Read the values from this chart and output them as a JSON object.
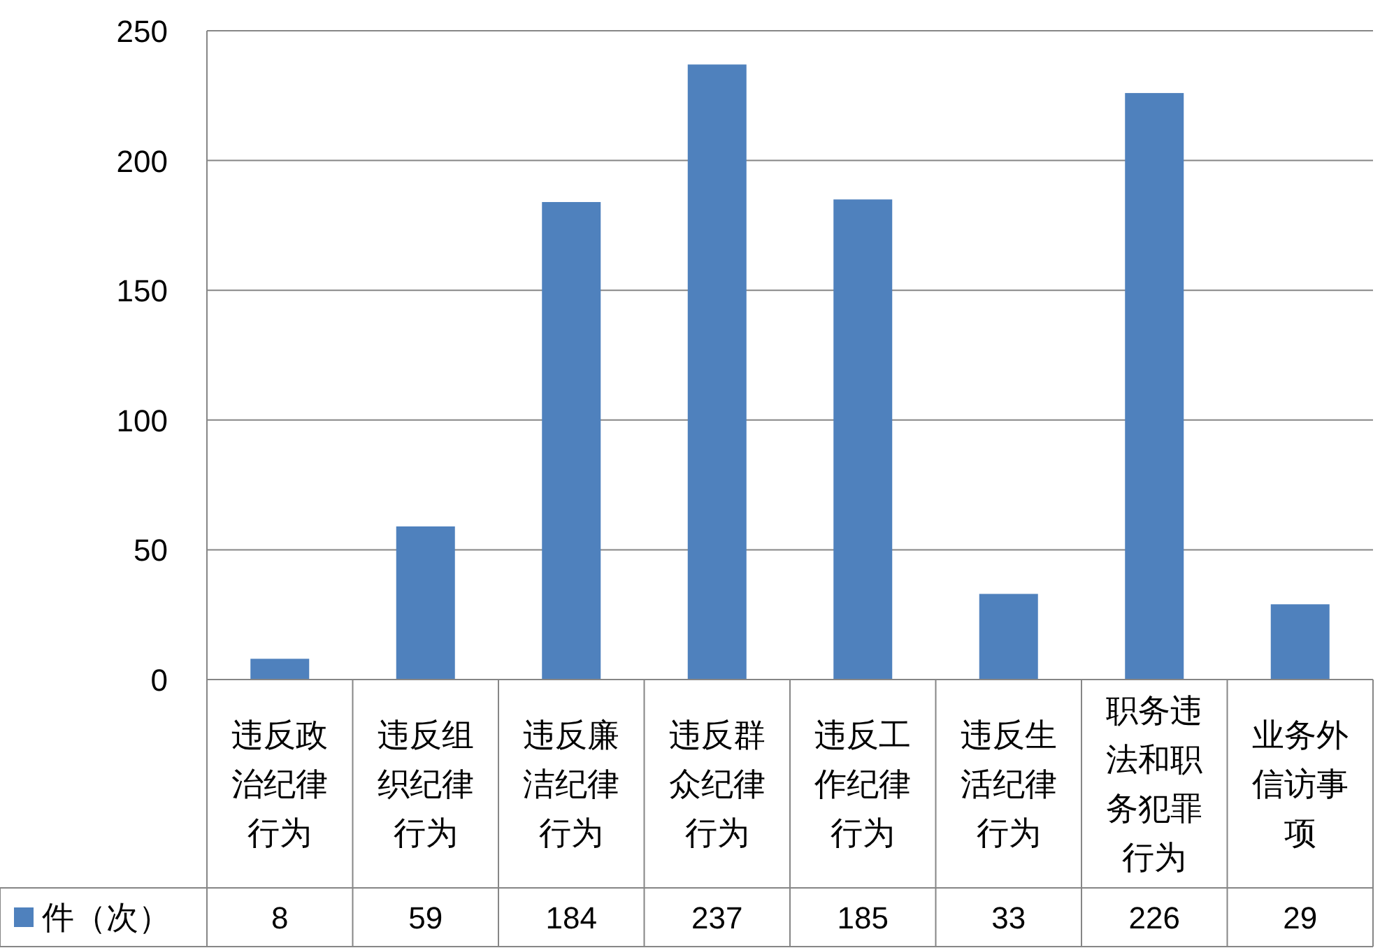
{
  "chart_data": {
    "type": "bar",
    "categories": [
      "违反政治纪律行为",
      "违反组织纪律行为",
      "违反廉洁纪律行为",
      "违反群众纪律行为",
      "违反工作纪律行为",
      "违反生活纪律行为",
      "职务违法和职务犯罪行为",
      "业务外信访事项"
    ],
    "series": [
      {
        "name": "件（次）",
        "color": "#4f81bd",
        "values": [
          8,
          59,
          184,
          237,
          185,
          33,
          226,
          29
        ]
      }
    ],
    "ylim": [
      0,
      250
    ],
    "yticks": [
      0,
      50,
      100,
      150,
      200,
      250
    ],
    "grid": "y",
    "legend": "bottom",
    "data_labels": true
  }
}
